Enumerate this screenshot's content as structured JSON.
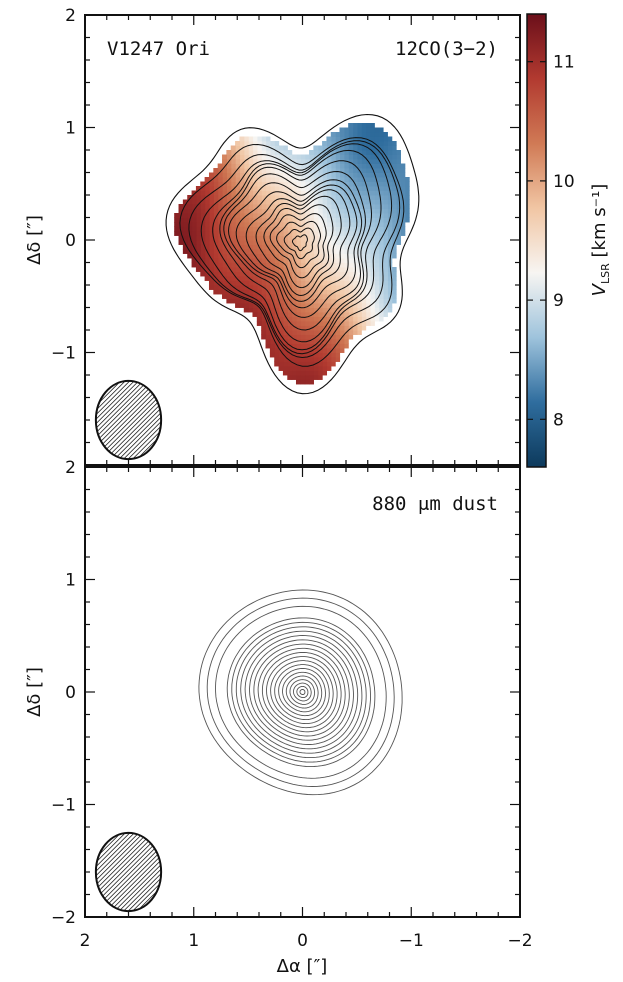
{
  "chart_data": [
    {
      "type": "heatmap",
      "title": "",
      "annotations": {
        "object": "V1247 Ori",
        "line": "12CO(3−2)"
      },
      "xlabel": "",
      "ylabel": "Δδ [″]",
      "xlim": [
        2,
        -2
      ],
      "ylim": [
        -2,
        2
      ],
      "xticks": [
        2,
        1,
        0,
        -1,
        -2
      ],
      "yticks": [
        2,
        1,
        0,
        -1,
        -2
      ],
      "ytick_labels": [
        "2",
        "1",
        "0",
        "−1",
        "−2"
      ],
      "colorbar": {
        "label_main": "V",
        "label_sub": "LSR",
        "label_unit": " [km s⁻¹]",
        "range": [
          7.6,
          11.4
        ],
        "ticks": [
          8,
          9,
          10,
          11
        ],
        "tick_labels": [
          "8",
          "9",
          "10",
          "11"
        ],
        "colormap": [
          "#0d3a5c",
          "#2f6d9e",
          "#9ec3dc",
          "#f7f5f2",
          "#f1c6a4",
          "#d07a55",
          "#b23a30",
          "#6b0f1a"
        ]
      },
      "velocity_field": {
        "center": [
          0,
          0
        ],
        "systemic_velocity": 9.7,
        "gradient": "redshifted east, blueshifted west-northwest",
        "approx_radius_arcsec": 1.2
      },
      "contours": {
        "count": 16,
        "peak": [
          0,
          0
        ]
      },
      "beam": {
        "center": [
          1.6,
          -1.6
        ],
        "major_arcsec": 0.72,
        "minor_arcsec": 0.6,
        "hatched": true
      }
    },
    {
      "type": "heatmap",
      "title": "",
      "annotations": {
        "label": "880 μm dust"
      },
      "xlabel": "Δα [″]",
      "ylabel": "Δδ [″]",
      "xlim": [
        2,
        -2
      ],
      "ylim": [
        -2,
        2
      ],
      "xticks": [
        2,
        1,
        0,
        -1,
        -2
      ],
      "xtick_labels": [
        "2",
        "1",
        "0",
        "−1",
        "−2"
      ],
      "yticks": [
        2,
        1,
        0,
        -1,
        -2
      ],
      "ytick_labels": [
        "2",
        "1",
        "0",
        "−1",
        "−2"
      ],
      "contours": {
        "count": 22,
        "peak": [
          0,
          0
        ],
        "outer_radius_arcsec": 0.92
      },
      "beam": {
        "center": [
          1.6,
          -1.6
        ],
        "major_arcsec": 0.72,
        "minor_arcsec": 0.6,
        "hatched": true
      }
    }
  ]
}
